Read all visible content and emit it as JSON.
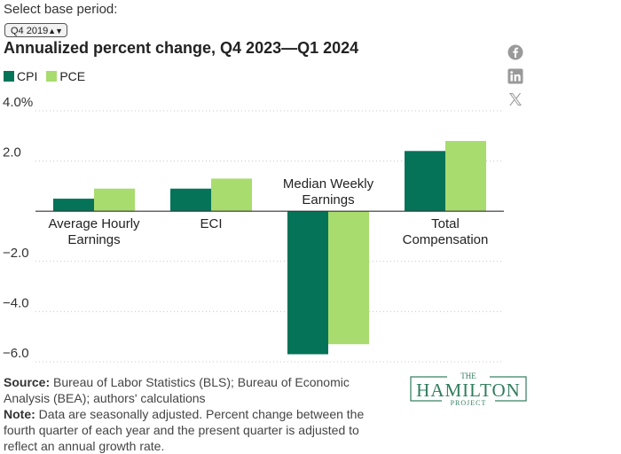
{
  "selector": {
    "label": "Select base period:",
    "value": "Q4 2019"
  },
  "title": "Annualized percent change, Q4 2023—Q1 2024",
  "legend": [
    {
      "name": "CPI",
      "color": "#057358"
    },
    {
      "name": "PCE",
      "color": "#a8dc6e"
    }
  ],
  "share": [
    "facebook-icon",
    "linkedin-icon",
    "x-icon"
  ],
  "chart_data": {
    "type": "bar",
    "categories": [
      [
        "Average Hourly",
        "Earnings"
      ],
      [
        "ECI"
      ],
      [
        "Median Weekly",
        "Earnings"
      ],
      [
        "Total",
        "Compensation"
      ]
    ],
    "series": [
      {
        "name": "CPI",
        "values": [
          0.5,
          0.9,
          -5.7,
          2.4
        ]
      },
      {
        "name": "PCE",
        "values": [
          0.9,
          1.3,
          -5.3,
          2.8
        ]
      }
    ],
    "ylim": [
      -6,
      4
    ],
    "yticks": [
      {
        "value": 4,
        "label": "4.0%"
      },
      {
        "value": 2,
        "label": "2.0"
      },
      {
        "value": -2,
        "label": "−2.0"
      },
      {
        "value": -4,
        "label": "−4.0"
      },
      {
        "value": -6,
        "label": "−6.0"
      }
    ],
    "grid": true,
    "legend_position": "top-left"
  },
  "footer": {
    "source_label": "Source:",
    "source_text": " Bureau of Labor Statistics (BLS); Bureau of Economic Analysis (BEA); authors' calculations",
    "note_label": "Note:",
    "note_text": " Data are seasonally adjusted. Percent change between the fourth quarter of each year and the present quarter is adjusted to reflect an annual growth rate."
  },
  "logo": {
    "top": "THE",
    "main": "HAMILTON",
    "bottom": "PROJECT"
  }
}
